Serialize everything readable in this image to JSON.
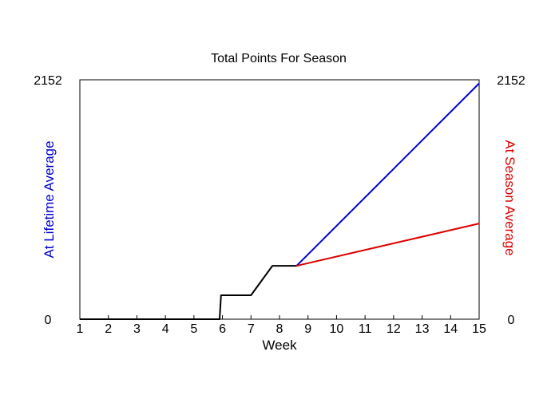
{
  "chart_data": {
    "type": "line",
    "title": "Total Points For Season",
    "xlabel": "Week",
    "ylabel_left": "At Lifetime Average",
    "ylabel_right": "At Season Average",
    "xlim": [
      1,
      15
    ],
    "ylim": [
      0,
      2152
    ],
    "x_ticks": [
      "1",
      "2",
      "3",
      "4",
      "5",
      "6",
      "7",
      "8",
      "9",
      "10",
      "11",
      "12",
      "13",
      "14",
      "15"
    ],
    "y_ticks_left": [
      "0",
      "2152"
    ],
    "y_ticks_right": [
      "0",
      "2152"
    ],
    "grid": false,
    "colors": {
      "actual": "#000000",
      "lifetime": "#0000cc",
      "season": "#dd0000",
      "left_label": "#0000cc",
      "right_label": "#dd0000"
    },
    "series": [
      {
        "key": "actual",
        "x": [
          1,
          5.9,
          5.95,
          6.5,
          7.0,
          7.75,
          7.85,
          8.6
        ],
        "y": [
          0,
          0,
          215,
          215,
          215,
          480,
          480,
          480
        ]
      },
      {
        "key": "lifetime",
        "x": [
          8.6,
          15
        ],
        "y": [
          480,
          2120
        ]
      },
      {
        "key": "season",
        "x": [
          8.6,
          15
        ],
        "y": [
          480,
          860
        ]
      }
    ]
  }
}
